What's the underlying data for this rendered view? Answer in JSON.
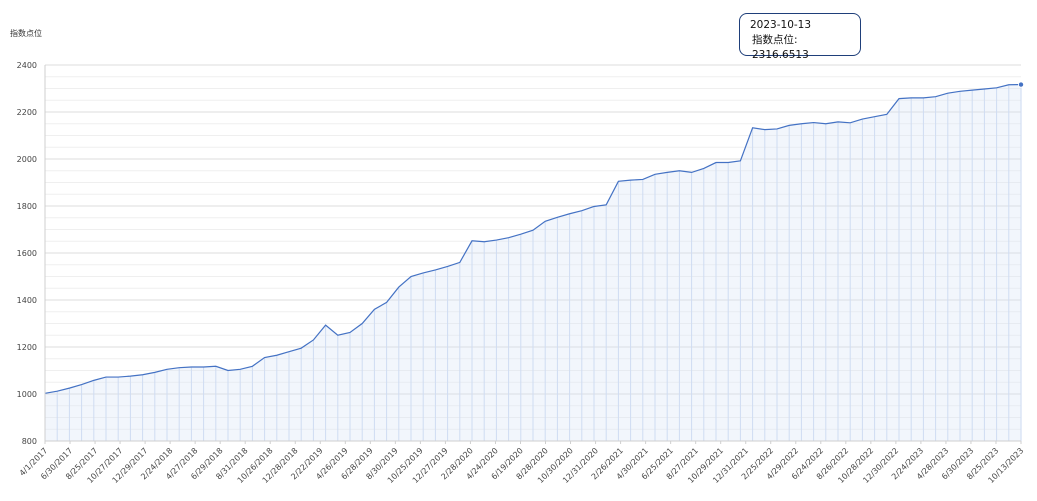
{
  "chart_data": {
    "type": "area",
    "title": "",
    "ylabel": "指数点位",
    "xlabel": "",
    "ylim": [
      800,
      2400
    ],
    "yticks": [
      800,
      1000,
      1200,
      1400,
      1600,
      1800,
      2000,
      2200,
      2400
    ],
    "grid": true,
    "colors": {
      "line": "#4472c4",
      "fill": "#dbe5f7",
      "grid": "#e3e3e3"
    },
    "xtick_labels": [
      "4/1/2017",
      "6/30/2017",
      "8/25/2017",
      "10/27/2017",
      "12/29/2017",
      "2/24/2018",
      "4/27/2018",
      "6/29/2018",
      "8/31/2018",
      "10/26/2018",
      "12/28/2018",
      "2/22/2019",
      "4/26/2019",
      "6/28/2019",
      "8/30/2019",
      "10/25/2019",
      "12/27/2019",
      "2/28/2020",
      "4/24/2020",
      "6/19/2020",
      "8/28/2020",
      "10/30/2020",
      "12/31/2020",
      "2/26/2021",
      "4/30/2021",
      "6/25/2021",
      "8/27/2021",
      "10/29/2021",
      "12/31/2021",
      "2/25/2022",
      "4/29/2022",
      "6/24/2022",
      "8/26/2022",
      "10/28/2022",
      "12/30/2022",
      "2/24/2023",
      "4/28/2023",
      "6/30/2023",
      "8/25/2023",
      "10/13/2023"
    ],
    "values": [
      1003,
      1012,
      1025,
      1040,
      1058,
      1072,
      1072,
      1076,
      1082,
      1092,
      1105,
      1112,
      1115,
      1115,
      1118,
      1100,
      1105,
      1118,
      1155,
      1165,
      1180,
      1195,
      1230,
      1293,
      1250,
      1262,
      1300,
      1360,
      1390,
      1455,
      1500,
      1515,
      1528,
      1543,
      1560,
      1652,
      1648,
      1655,
      1665,
      1680,
      1697,
      1735,
      1752,
      1767,
      1780,
      1798,
      1805,
      1905,
      1910,
      1913,
      1935,
      1943,
      1950,
      1943,
      1960,
      1985,
      1985,
      1992,
      2133,
      2125,
      2128,
      2143,
      2150,
      2155,
      2150,
      2158,
      2154,
      2170,
      2180,
      2190,
      2257,
      2260,
      2260,
      2265,
      2280,
      2288,
      2293,
      2298,
      2303,
      2316,
      2316.6513
    ],
    "highlight": {
      "date": "2023-10-13",
      "label": "指数点位",
      "value": "2316.6513"
    }
  }
}
